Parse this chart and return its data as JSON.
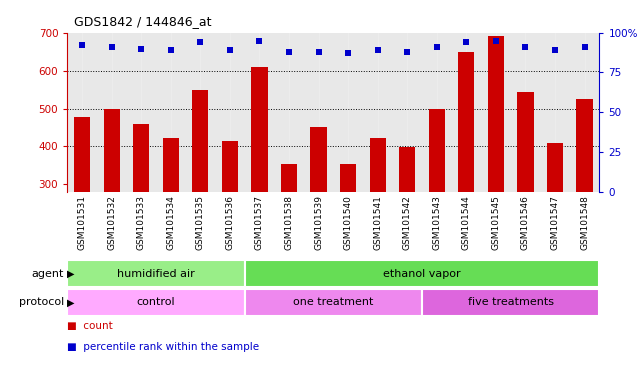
{
  "title": "GDS1842 / 144846_at",
  "samples": [
    "GSM101531",
    "GSM101532",
    "GSM101533",
    "GSM101534",
    "GSM101535",
    "GSM101536",
    "GSM101537",
    "GSM101538",
    "GSM101539",
    "GSM101540",
    "GSM101541",
    "GSM101542",
    "GSM101543",
    "GSM101544",
    "GSM101545",
    "GSM101546",
    "GSM101547",
    "GSM101548"
  ],
  "counts": [
    478,
    500,
    460,
    422,
    548,
    414,
    610,
    355,
    452,
    353,
    422,
    399,
    500,
    648,
    690,
    543,
    410,
    526
  ],
  "percentiles": [
    92,
    91,
    90,
    89,
    94,
    89,
    95,
    88,
    88,
    87,
    89,
    88,
    91,
    94,
    95,
    91,
    89,
    91
  ],
  "bar_color": "#cc0000",
  "dot_color": "#0000cc",
  "ylim_left": [
    280,
    700
  ],
  "ylim_right": [
    0,
    100
  ],
  "yticks_left": [
    300,
    400,
    500,
    600,
    700
  ],
  "yticks_right": [
    0,
    25,
    50,
    75,
    100
  ],
  "grid_values": [
    400,
    500,
    600
  ],
  "agent_groups": [
    {
      "label": "humidified air",
      "start": 0,
      "end": 6,
      "color": "#99ee88"
    },
    {
      "label": "ethanol vapor",
      "start": 6,
      "end": 18,
      "color": "#66dd55"
    }
  ],
  "protocol_groups": [
    {
      "label": "control",
      "start": 0,
      "end": 6,
      "color": "#ffaaff"
    },
    {
      "label": "one treatment",
      "start": 6,
      "end": 12,
      "color": "#ee88ee"
    },
    {
      "label": "five treatments",
      "start": 12,
      "end": 18,
      "color": "#dd66dd"
    }
  ],
  "bg_color": "#ffffff",
  "plot_bg": "#e8e8e8",
  "bar_bottom": 0
}
